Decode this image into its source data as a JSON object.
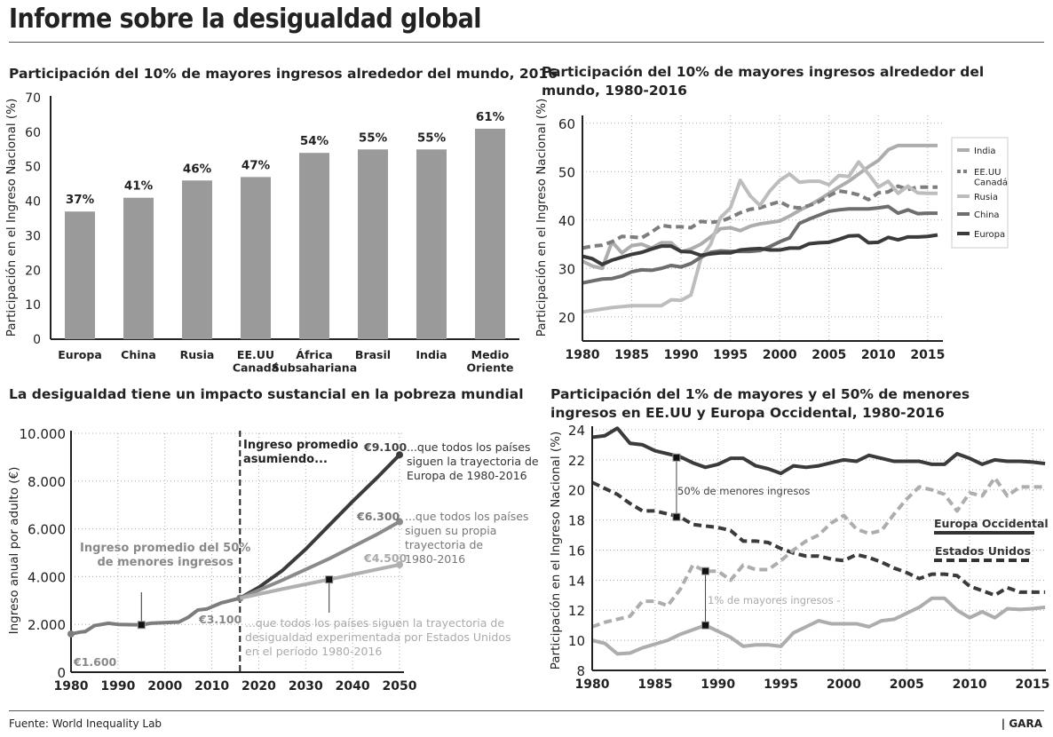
{
  "title": "Informe sobre la desigualdad global",
  "footer": {
    "source": "Fuente: World Inequality Lab",
    "brand": "| GARA"
  },
  "colors": {
    "dark": "#3b3b3b",
    "mid": "#7d7d7d",
    "light": "#adadad",
    "bar": "#9a9a9a"
  },
  "chart_data": [
    {
      "type": "bar",
      "title": "Participación del 10% de mayores ingresos alrededor del mundo, 2016",
      "ylabel": "Participación en el Ingreso Nacional (%)",
      "ylim": [
        0,
        70
      ],
      "yticks": [
        0,
        10,
        20,
        30,
        40,
        50,
        60,
        70
      ],
      "categories": [
        "Europa",
        "China",
        "Rusia",
        "EE.UU\nCanadá",
        "África\nSubsahariana",
        "Brasil",
        "India",
        "Medio\nOriente"
      ],
      "values": [
        37,
        41,
        46,
        47,
        54,
        55,
        55,
        61
      ],
      "data_labels": [
        "37%",
        "41%",
        "46%",
        "47%",
        "54%",
        "55%",
        "55%",
        "61%"
      ],
      "grid": false
    },
    {
      "type": "line",
      "title": "Participación del 10% de mayores ingresos alrededor del mundo, 1980-2016",
      "ylabel": "Participación en el Ingreso Nacional (%)",
      "ylim": [
        15,
        60
      ],
      "yticks": [
        20,
        30,
        40,
        50,
        60
      ],
      "xticks": [
        1980,
        1985,
        1990,
        1995,
        2000,
        2005,
        2010,
        2015
      ],
      "x_start": 1980,
      "x_end": 2016,
      "grid": true,
      "legend": "right",
      "series": [
        {
          "name": "India",
          "color": "#adadad",
          "dash": false,
          "values": [
            31.5,
            30.5,
            30,
            35.5,
            33.2,
            34.7,
            35,
            34.2,
            35.3,
            35.3,
            33.4,
            34,
            35,
            36.5,
            38.2,
            38.4,
            37.8,
            38.7,
            39.2,
            39.5,
            39.8,
            40.8,
            42,
            43,
            44.2,
            45.5,
            46.8,
            48,
            49.5,
            51,
            52.3,
            54.5,
            55.4,
            55.4,
            55.4,
            55.4,
            55.4
          ]
        },
        {
          "name": "EE.UU\nCanadá",
          "color": "#7d7d7d",
          "dash": true,
          "values": [
            34.2,
            34.6,
            34.8,
            35.5,
            36.6,
            36.5,
            36.3,
            37.5,
            38.9,
            38.6,
            38.6,
            38.4,
            39.7,
            39.5,
            39.7,
            40.5,
            41.5,
            42.2,
            42.5,
            43.2,
            43.8,
            42.7,
            42.5,
            43,
            43.8,
            45,
            46,
            45.7,
            45.2,
            44.2,
            45.6,
            45.8,
            47,
            46.3,
            46.8,
            46.8,
            46.8
          ]
        },
        {
          "name": "Rusia",
          "color": "#bdbdbd",
          "dash": false,
          "values": [
            21,
            21.3,
            21.6,
            21.9,
            22.1,
            22.3,
            22.3,
            22.3,
            22.3,
            23.5,
            23.4,
            24.5,
            32,
            35,
            40.5,
            42.5,
            48.2,
            45,
            43,
            46,
            48.2,
            49.5,
            47.8,
            48,
            48,
            47.3,
            49.2,
            49,
            52,
            49.5,
            46.8,
            48,
            45.5,
            47,
            45.6,
            45.5,
            45.5
          ]
        },
        {
          "name": "China",
          "color": "#6e6e6e",
          "dash": false,
          "values": [
            27,
            27.4,
            27.8,
            27.9,
            28.4,
            29.3,
            29.7,
            29.6,
            30,
            30.6,
            30.3,
            31,
            32.3,
            33.3,
            33.6,
            33.5,
            33.5,
            33.5,
            33.7,
            34.5,
            35.5,
            36.3,
            39.3,
            40.2,
            41,
            41.8,
            42.1,
            42.3,
            42.3,
            42.3,
            42.5,
            42.8,
            41.4,
            42.1,
            41.3,
            41.4,
            41.4
          ]
        },
        {
          "name": "Europa",
          "color": "#3b3b3b",
          "dash": false,
          "values": [
            32.5,
            32,
            30.8,
            31.7,
            32.3,
            32.9,
            33.3,
            34,
            34.6,
            34.6,
            33.5,
            33.4,
            32.7,
            33,
            33.2,
            33.2,
            33.8,
            34,
            34.1,
            33.8,
            33.8,
            34.2,
            34.2,
            35.1,
            35.3,
            35.4,
            36,
            36.7,
            36.8,
            35.3,
            35.4,
            36.4,
            35.9,
            36.5,
            36.5,
            36.6,
            36.9
          ]
        }
      ]
    },
    {
      "type": "line",
      "title": "La desigualdad tiene un impacto sustancial en la pobreza mundial",
      "ylabel": "Ingreso anual por adulto (€)",
      "ylim": [
        0,
        10000
      ],
      "yticks": [
        0,
        2000,
        4000,
        6000,
        8000,
        10000
      ],
      "ytick_labels": [
        "0",
        "2.000",
        "4.000",
        "6.000",
        "8.000",
        "10.000"
      ],
      "xticks": [
        1980,
        1990,
        2000,
        2010,
        2020,
        2030,
        2040,
        2050
      ],
      "grid": true,
      "divider_year": 2016,
      "divider_label": "Ingreso promedio\nasumiendo...",
      "historical_label": "Ingreso promedio del 50%\nde menores ingresos",
      "series": [
        {
          "name": "historical",
          "color": "#7d7d7d",
          "points": [
            [
              1980,
              1600
            ],
            [
              1982,
              1680
            ],
            [
              1983,
              1700
            ],
            [
              1985,
              1950
            ],
            [
              1988,
              2050
            ],
            [
              1990,
              2000
            ],
            [
              1995,
              1980
            ],
            [
              1997,
              2050
            ],
            [
              2003,
              2100
            ],
            [
              2005,
              2300
            ],
            [
              2007,
              2600
            ],
            [
              2009,
              2650
            ],
            [
              2012,
              2900
            ],
            [
              2016,
              3100
            ]
          ]
        },
        {
          "name": "europe",
          "color": "#3b3b3b",
          "points": [
            [
              2016,
              3100
            ],
            [
              2020,
              3550
            ],
            [
              2025,
              4250
            ],
            [
              2030,
              5150
            ],
            [
              2035,
              6150
            ],
            [
              2040,
              7150
            ],
            [
              2045,
              8100
            ],
            [
              2050,
              9100
            ]
          ]
        },
        {
          "name": "own",
          "color": "#8a8a8a",
          "points": [
            [
              2016,
              3100
            ],
            [
              2025,
              3850
            ],
            [
              2030,
              4300
            ],
            [
              2035,
              4750
            ],
            [
              2040,
              5250
            ],
            [
              2045,
              5750
            ],
            [
              2050,
              6300
            ]
          ]
        },
        {
          "name": "us",
          "color": "#b0b0b0",
          "points": [
            [
              2016,
              3100
            ],
            [
              2025,
              3480
            ],
            [
              2035,
              3880
            ],
            [
              2050,
              4500
            ]
          ]
        }
      ],
      "annotations": {
        "start": "€1.600",
        "now": "€3.100",
        "europe_end": "€9.100",
        "own_end": "€6.300",
        "us_end": "€4.500",
        "europe_text": "...que todos los países\nsiguen la trayectoria de\nEuropa de 1980-2016",
        "own_text": "...que todos los países\nsiguen su propia\ntrayectoria de\n1980-2016",
        "us_text": "...que todos los países siguen la trayectoria de\ndesigualdad experimentada por Estados Unidos\nen el período 1980-2016"
      }
    },
    {
      "type": "line",
      "title": "Participación del 1% de mayores y el 50% de menores ingresos en EE.UU y Europa Occidental, 1980-2016",
      "ylabel": "Participación en el Ingreso Nacional (%)",
      "ylim": [
        8,
        24
      ],
      "yticks": [
        8,
        10,
        12,
        14,
        16,
        18,
        20,
        22,
        24
      ],
      "xticks": [
        1980,
        1985,
        1990,
        1995,
        2000,
        2005,
        2010,
        2015
      ],
      "x_start": 1980,
      "x_end": 2016,
      "grid": true,
      "legend_items": [
        {
          "name": "Europa Occidental",
          "dash": false
        },
        {
          "name": "Estados Unidos",
          "dash": true
        }
      ],
      "annotations": {
        "bottom50": "50% de menores ingresos",
        "top1": "1% de mayores ingresos -"
      },
      "series": [
        {
          "name": "Europa Occidental 50% de menores ingresos",
          "color": "#3b3b3b",
          "dash": false,
          "values": [
            23.5,
            23.6,
            24.1,
            23.1,
            23,
            22.6,
            22.4,
            22.2,
            21.8,
            21.5,
            21.7,
            22.1,
            22.1,
            21.6,
            21.4,
            21.1,
            21.6,
            21.5,
            21.6,
            21.8,
            22,
            21.9,
            22.3,
            22.1,
            21.9,
            21.9,
            21.9,
            21.7,
            21.7,
            22.4,
            22.1,
            21.7,
            22,
            21.9,
            21.9,
            21.85,
            21.75
          ]
        },
        {
          "name": "Estados Unidos 50% de menores ingresos",
          "color": "#3b3b3b",
          "dash": true,
          "values": [
            20.5,
            20.1,
            19.7,
            19.1,
            18.6,
            18.6,
            18.4,
            18.2,
            17.7,
            17.6,
            17.5,
            17.3,
            16.6,
            16.6,
            16.5,
            16.1,
            15.8,
            15.6,
            15.6,
            15.4,
            15.3,
            15.7,
            15.5,
            15.2,
            14.8,
            14.5,
            14.1,
            14.4,
            14.4,
            14.3,
            13.6,
            13.3,
            13,
            13.5,
            13.2,
            13.2,
            13.2
          ]
        },
        {
          "name": "Estados Unidos 1% de mayores ingresos",
          "color": "#adadad",
          "dash": true,
          "values": [
            10.9,
            11.2,
            11.4,
            11.6,
            12.6,
            12.6,
            12.3,
            13.4,
            15,
            14.6,
            14.6,
            14,
            15,
            14.7,
            14.7,
            15.3,
            16,
            16.6,
            17,
            17.8,
            18.3,
            17.4,
            17.1,
            17.3,
            18.4,
            19.4,
            20.2,
            20,
            19.7,
            18.6,
            19.8,
            19.6,
            20.8,
            19.6,
            20.2,
            20.2,
            20.2
          ]
        },
        {
          "name": "Europa Occidental 1% de mayores ingresos",
          "color": "#adadad",
          "dash": false,
          "values": [
            10,
            9.8,
            9.1,
            9.15,
            9.5,
            9.75,
            10,
            10.4,
            10.7,
            11,
            10.6,
            10.2,
            9.6,
            9.7,
            9.7,
            9.6,
            10.5,
            10.9,
            11.3,
            11.1,
            11.1,
            11.1,
            10.9,
            11.3,
            11.4,
            11.8,
            12.2,
            12.8,
            12.8,
            12,
            11.5,
            11.9,
            11.5,
            12.1,
            12.05,
            12.1,
            12.2
          ]
        }
      ]
    }
  ]
}
